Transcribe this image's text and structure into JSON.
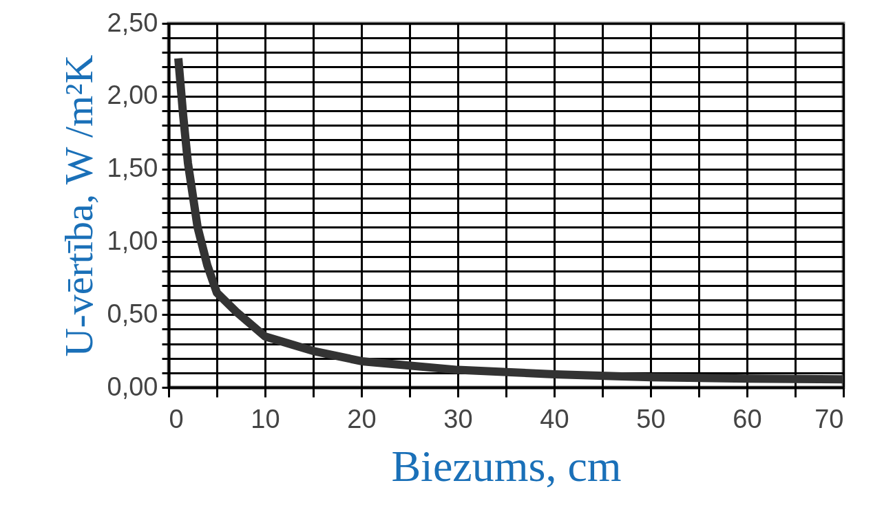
{
  "chart_data": {
    "type": "line",
    "xlabel": "Biezums, cm",
    "ylabel": "U-vērtība, W /m²K",
    "x": [
      1,
      1.5,
      2,
      3,
      4,
      5,
      7,
      10,
      15,
      20,
      30,
      40,
      50,
      60,
      70
    ],
    "series": [
      {
        "color": "#333333",
        "values": [
          2.26,
          1.87,
          1.54,
          1.1,
          0.84,
          0.65,
          0.52,
          0.35,
          0.25,
          0.18,
          0.12,
          0.09,
          0.07,
          0.06,
          0.055
        ]
      }
    ],
    "xlim": [
      0,
      70
    ],
    "ylim": [
      0,
      2.5
    ],
    "xticks": [
      0,
      {
        "value": 5,
        "label": null
      },
      10,
      {
        "value": 15,
        "label": null
      },
      20,
      {
        "value": 25,
        "label": null
      },
      30,
      {
        "value": 35,
        "label": null
      },
      40,
      {
        "value": 45,
        "label": null
      },
      50,
      {
        "value": 55,
        "label": null
      },
      60,
      {
        "value": 65,
        "label": null
      },
      70
    ],
    "yticks": [
      {
        "value": 0,
        "label": "0,00"
      },
      {
        "value": 0.1,
        "label": null
      },
      {
        "value": 0.2,
        "label": null
      },
      {
        "value": 0.3,
        "label": null
      },
      {
        "value": 0.4,
        "label": null
      },
      {
        "value": 0.5,
        "label": "0,50"
      },
      {
        "value": 0.6,
        "label": null
      },
      {
        "value": 0.7,
        "label": null
      },
      {
        "value": 0.8,
        "label": null
      },
      {
        "value": 0.9,
        "label": null
      },
      {
        "value": 1,
        "label": "1,00"
      },
      {
        "value": 1.1,
        "label": null
      },
      {
        "value": 1.2,
        "label": null
      },
      {
        "value": 1.3,
        "label": null
      },
      {
        "value": 1.4,
        "label": null
      },
      {
        "value": 1.5,
        "label": "1,50"
      },
      {
        "value": 1.6,
        "label": null
      },
      {
        "value": 1.7,
        "label": null
      },
      {
        "value": 1.8,
        "label": null
      },
      {
        "value": 1.9,
        "label": null
      },
      {
        "value": 2,
        "label": "2,00"
      },
      {
        "value": 2.1,
        "label": null
      },
      {
        "value": 2.2,
        "label": null
      },
      {
        "value": 2.3,
        "label": null
      },
      {
        "value": 2.4,
        "label": null
      },
      {
        "value": 2.5,
        "label": "2,50"
      }
    ],
    "grid": true
  }
}
